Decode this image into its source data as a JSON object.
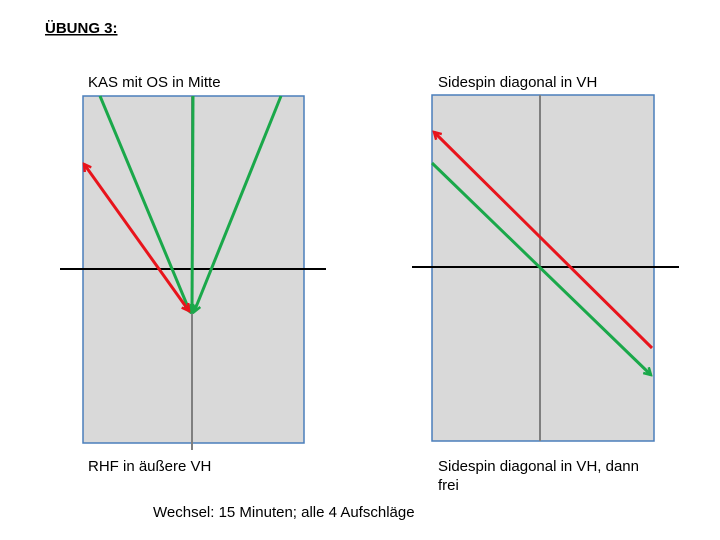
{
  "title": "ÜBUNG 3:",
  "diagrams": [
    {
      "top_label": "KAS mit OS in Mitte",
      "bottom_label": [
        "RHF in äußere VH"
      ]
    },
    {
      "top_label": "Sidespin diagonal in VH",
      "bottom_label": [
        "Sidespin diagonal in VH, dann",
        "frei"
      ]
    }
  ],
  "footer": "Wechsel: 15 Minuten; alle 4 Aufschläge"
}
